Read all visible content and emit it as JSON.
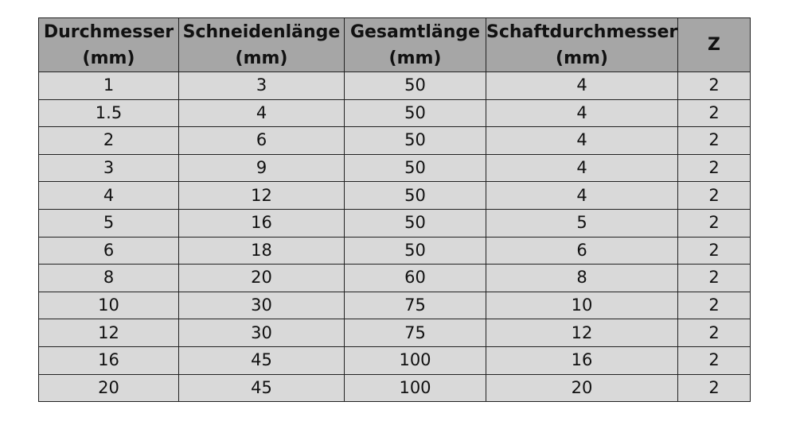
{
  "table": {
    "headers": [
      {
        "line1": "Durchmesser",
        "line2": "(mm)"
      },
      {
        "line1": "Schneidenlänge",
        "line2": "(mm)"
      },
      {
        "line1": "Gesamtlänge",
        "line2": "(mm)"
      },
      {
        "line1": "Schaftdurchmesser",
        "line2": "(mm)"
      },
      {
        "line1": "Z",
        "line2": ""
      }
    ],
    "rows": [
      [
        "1",
        "3",
        "50",
        "4",
        "2"
      ],
      [
        "1.5",
        "4",
        "50",
        "4",
        "2"
      ],
      [
        "2",
        "6",
        "50",
        "4",
        "2"
      ],
      [
        "3",
        "9",
        "50",
        "4",
        "2"
      ],
      [
        "4",
        "12",
        "50",
        "4",
        "2"
      ],
      [
        "5",
        "16",
        "50",
        "5",
        "2"
      ],
      [
        "6",
        "18",
        "50",
        "6",
        "2"
      ],
      [
        "8",
        "20",
        "60",
        "8",
        "2"
      ],
      [
        "10",
        "30",
        "75",
        "10",
        "2"
      ],
      [
        "12",
        "30",
        "75",
        "12",
        "2"
      ],
      [
        "16",
        "45",
        "100",
        "16",
        "2"
      ],
      [
        "20",
        "45",
        "100",
        "20",
        "2"
      ]
    ]
  }
}
